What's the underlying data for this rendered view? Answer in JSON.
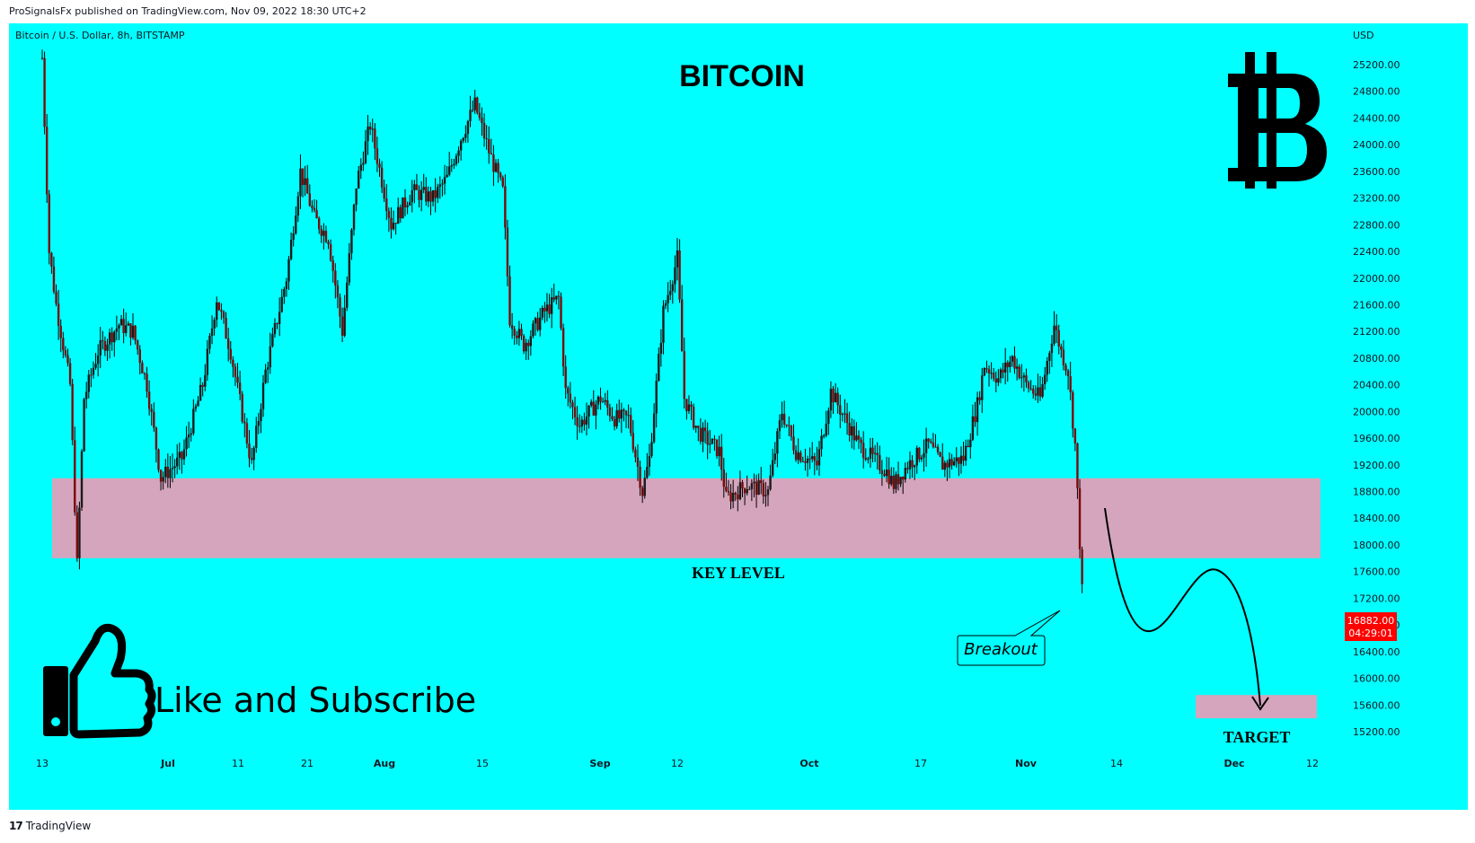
{
  "header": {
    "published_text": "ProSignalsFx published on TradingView.com, Nov 09, 2022 18:30 UTC+2"
  },
  "footer": {
    "brand_label": "TradingView",
    "brand_logo": "tradingview-logo"
  },
  "colors": {
    "background": "#00ffff",
    "candle_body": "#7a0a0a",
    "zone": "#d4a5bd",
    "price_badge": "#ff0000",
    "text": "#000000"
  },
  "chart_data": {
    "type": "candlestick",
    "symbol_label": "Bitcoin / U.S. Dollar, 8h, BITSTAMP",
    "currency_label": "USD",
    "title": "BITCOIN",
    "ylim": [
      14900,
      25500
    ],
    "y_ticks": [
      "25200.00",
      "24800.00",
      "24400.00",
      "24000.00",
      "23600.00",
      "23200.00",
      "22800.00",
      "22400.00",
      "22000.00",
      "21600.00",
      "21200.00",
      "20800.00",
      "20400.00",
      "20000.00",
      "19600.00",
      "19200.00",
      "18800.00",
      "18400.00",
      "18000.00",
      "17600.00",
      "17200.00",
      "16800.00",
      "16400.00",
      "16000.00",
      "15600.00",
      "15200.00"
    ],
    "x_ticks": [
      "13",
      "Jul",
      "11",
      "21",
      "Aug",
      "15",
      "Sep",
      "12",
      "Oct",
      "17",
      "Nov",
      "14",
      "Dec",
      "12"
    ],
    "last_price": "16882.00",
    "countdown": "04:29:01",
    "price_path": [
      [
        "Jun 13",
        25300
      ],
      [
        "Jun 14",
        22400
      ],
      [
        "Jun 15",
        21600
      ],
      [
        "Jun 17",
        20400
      ],
      [
        "Jun 18",
        17700
      ],
      [
        "Jun 19",
        20200
      ],
      [
        "Jun 21",
        20900
      ],
      [
        "Jun 24",
        21300
      ],
      [
        "Jun 26",
        21200
      ],
      [
        "Jun 28",
        20400
      ],
      [
        "Jun 30",
        19000
      ],
      [
        "Jul 3",
        19300
      ],
      [
        "Jul 6",
        20400
      ],
      [
        "Jul 8",
        21700
      ],
      [
        "Jul 10",
        20900
      ],
      [
        "Jul 13",
        19200
      ],
      [
        "Jul 15",
        20600
      ],
      [
        "Jul 18",
        22000
      ],
      [
        "Jul 20",
        23600
      ],
      [
        "Jul 22",
        22900
      ],
      [
        "Jul 24",
        22600
      ],
      [
        "Jul 26",
        21200
      ],
      [
        "Jul 28",
        23400
      ],
      [
        "Jul 30",
        24300
      ],
      [
        "Aug 2",
        22800
      ],
      [
        "Aug 5",
        23300
      ],
      [
        "Aug 8",
        23200
      ],
      [
        "Aug 10",
        23500
      ],
      [
        "Aug 12",
        24100
      ],
      [
        "Aug 14",
        24600
      ],
      [
        "Aug 16",
        23900
      ],
      [
        "Aug 18",
        23300
      ],
      [
        "Aug 19",
        21400
      ],
      [
        "Aug 21",
        21000
      ],
      [
        "Aug 24",
        21500
      ],
      [
        "Aug 26",
        21700
      ],
      [
        "Aug 27",
        20300
      ],
      [
        "Aug 29",
        19800
      ],
      [
        "Sep 1",
        20200
      ],
      [
        "Sep 3",
        19900
      ],
      [
        "Sep 5",
        19900
      ],
      [
        "Sep 7",
        18800
      ],
      [
        "Sep 8",
        19300
      ],
      [
        "Sep 10",
        21500
      ],
      [
        "Sep 12",
        22300
      ],
      [
        "Sep 13",
        20200
      ],
      [
        "Sep 15",
        19700
      ],
      [
        "Sep 18",
        19400
      ],
      [
        "Sep 19",
        18700
      ],
      [
        "Sep 22",
        18900
      ],
      [
        "Sep 25",
        18800
      ],
      [
        "Sep 27",
        20000
      ],
      [
        "Sep 29",
        19400
      ],
      [
        "Oct 2",
        19200
      ],
      [
        "Oct 4",
        20300
      ],
      [
        "Oct 6",
        19900
      ],
      [
        "Oct 8",
        19500
      ],
      [
        "Oct 12",
        19100
      ],
      [
        "Oct 13",
        18900
      ],
      [
        "Oct 15",
        19200
      ],
      [
        "Oct 18",
        19500
      ],
      [
        "Oct 20",
        19200
      ],
      [
        "Oct 23",
        19300
      ],
      [
        "Oct 25",
        20100
      ],
      [
        "Oct 26",
        20700
      ],
      [
        "Oct 28",
        20500
      ],
      [
        "Oct 30",
        20800
      ],
      [
        "Nov 1",
        20400
      ],
      [
        "Nov 3",
        20200
      ],
      [
        "Nov 5",
        21300
      ],
      [
        "Nov 6",
        20900
      ],
      [
        "Nov 7",
        20600
      ],
      [
        "Nov 8",
        19500
      ],
      [
        "Nov 9",
        17300
      ],
      [
        "Nov 9",
        16882
      ]
    ],
    "key_level_zone": {
      "from": 17800,
      "to": 19000,
      "label": "KEY LEVEL"
    },
    "target_zone": {
      "from": 15400,
      "to": 15750,
      "label": "TARGET"
    },
    "annotations": {
      "breakout": "Breakout",
      "cta": "Like and Subscribe"
    }
  }
}
